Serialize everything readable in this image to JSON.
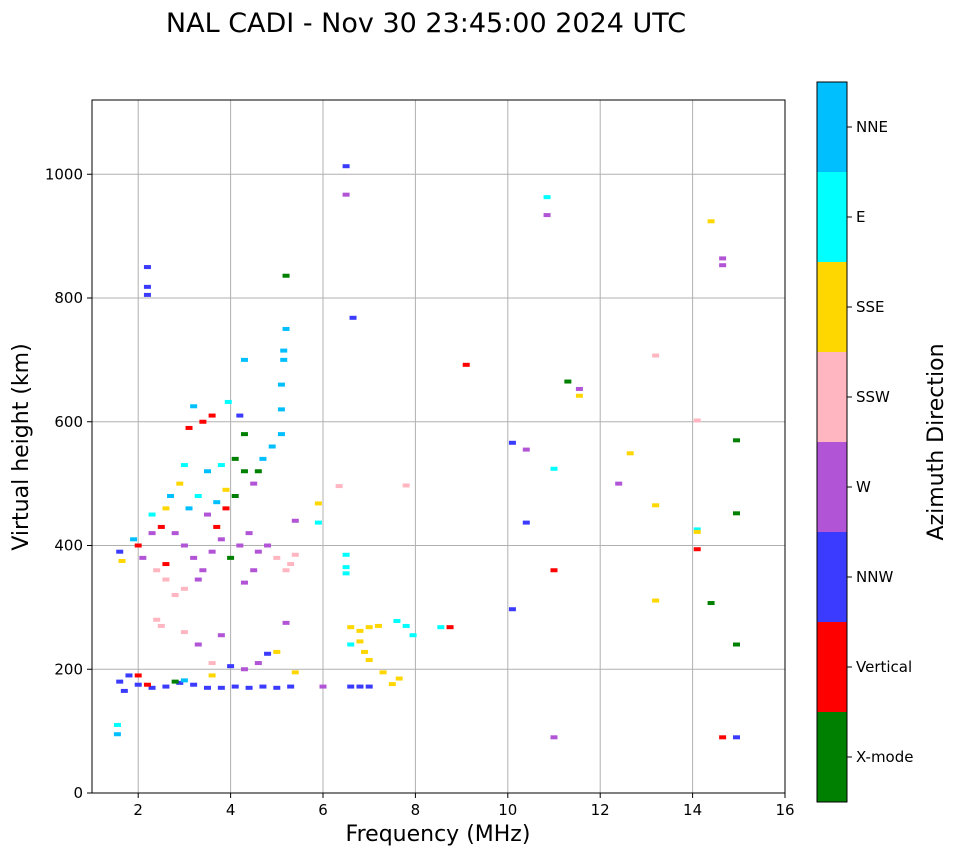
{
  "chart_data": {
    "type": "scatter",
    "title": "NAL CADI - Nov 30 23:45:00 2024 UTC",
    "xlabel": "Frequency (MHz)",
    "ylabel": "Virtual height (km)",
    "xlim": [
      1,
      16
    ],
    "ylim": [
      0,
      1120
    ],
    "xticks": [
      2,
      4,
      6,
      8,
      10,
      12,
      14,
      16
    ],
    "yticks": [
      0,
      200,
      400,
      600,
      800,
      1000
    ],
    "grid": true,
    "colorbar": {
      "label": "Azimuth Direction",
      "categories": [
        {
          "name": "X-mode",
          "color": "#008000"
        },
        {
          "name": "Vertical",
          "color": "#ff0000"
        },
        {
          "name": "NNW",
          "color": "#3b3bff"
        },
        {
          "name": "W",
          "color": "#b254d6"
        },
        {
          "name": "SSW",
          "color": "#ffb6c1"
        },
        {
          "name": "SSE",
          "color": "#ffd700"
        },
        {
          "name": "E",
          "color": "#00ffff"
        },
        {
          "name": "NNE",
          "color": "#00bfff"
        }
      ]
    },
    "points": [
      {
        "x": 6.5,
        "y": 1013,
        "d": "NNW"
      },
      {
        "x": 6.5,
        "y": 967,
        "d": "W"
      },
      {
        "x": 6.65,
        "y": 768,
        "d": "NNW"
      },
      {
        "x": 6.5,
        "y": 385,
        "d": "E"
      },
      {
        "x": 6.5,
        "y": 365,
        "d": "E"
      },
      {
        "x": 6.5,
        "y": 355,
        "d": "E"
      },
      {
        "x": 6.6,
        "y": 172,
        "d": "NNW"
      },
      {
        "x": 6.8,
        "y": 172,
        "d": "NNW"
      },
      {
        "x": 7.0,
        "y": 172,
        "d": "NNW"
      },
      {
        "x": 6.6,
        "y": 240,
        "d": "E"
      },
      {
        "x": 6.8,
        "y": 245,
        "d": "SSE"
      },
      {
        "x": 6.9,
        "y": 228,
        "d": "SSE"
      },
      {
        "x": 7.0,
        "y": 215,
        "d": "SSE"
      },
      {
        "x": 6.6,
        "y": 268,
        "d": "SSE"
      },
      {
        "x": 6.8,
        "y": 262,
        "d": "SSE"
      },
      {
        "x": 7.0,
        "y": 268,
        "d": "SSE"
      },
      {
        "x": 7.2,
        "y": 270,
        "d": "SSE"
      },
      {
        "x": 7.6,
        "y": 278,
        "d": "E"
      },
      {
        "x": 7.8,
        "y": 270,
        "d": "E"
      },
      {
        "x": 7.95,
        "y": 255,
        "d": "E"
      },
      {
        "x": 8.55,
        "y": 268,
        "d": "E"
      },
      {
        "x": 8.75,
        "y": 268,
        "d": "Vertical"
      },
      {
        "x": 7.65,
        "y": 185,
        "d": "SSE"
      },
      {
        "x": 7.5,
        "y": 176,
        "d": "SSE"
      },
      {
        "x": 7.3,
        "y": 195,
        "d": "SSE"
      },
      {
        "x": 9.1,
        "y": 692,
        "d": "Vertical"
      },
      {
        "x": 10.85,
        "y": 963,
        "d": "E"
      },
      {
        "x": 10.85,
        "y": 934,
        "d": "W"
      },
      {
        "x": 10.1,
        "y": 566,
        "d": "NNW"
      },
      {
        "x": 10.4,
        "y": 555,
        "d": "W"
      },
      {
        "x": 11.0,
        "y": 524,
        "d": "E"
      },
      {
        "x": 10.4,
        "y": 437,
        "d": "NNW"
      },
      {
        "x": 10.1,
        "y": 297,
        "d": "NNW"
      },
      {
        "x": 11.0,
        "y": 360,
        "d": "Vertical"
      },
      {
        "x": 11.0,
        "y": 90,
        "d": "W"
      },
      {
        "x": 11.3,
        "y": 665,
        "d": "X-mode"
      },
      {
        "x": 11.55,
        "y": 653,
        "d": "W"
      },
      {
        "x": 11.55,
        "y": 642,
        "d": "SSE"
      },
      {
        "x": 12.4,
        "y": 500,
        "d": "W"
      },
      {
        "x": 12.65,
        "y": 549,
        "d": "SSE"
      },
      {
        "x": 13.2,
        "y": 707,
        "d": "SSW"
      },
      {
        "x": 13.2,
        "y": 465,
        "d": "SSE"
      },
      {
        "x": 13.2,
        "y": 311,
        "d": "SSE"
      },
      {
        "x": 14.1,
        "y": 602,
        "d": "SSW"
      },
      {
        "x": 14.1,
        "y": 426,
        "d": "E"
      },
      {
        "x": 14.1,
        "y": 422,
        "d": "SSE"
      },
      {
        "x": 14.1,
        "y": 394,
        "d": "Vertical"
      },
      {
        "x": 14.4,
        "y": 924,
        "d": "SSE"
      },
      {
        "x": 14.65,
        "y": 864,
        "d": "W"
      },
      {
        "x": 14.65,
        "y": 853,
        "d": "W"
      },
      {
        "x": 14.4,
        "y": 307,
        "d": "X-mode"
      },
      {
        "x": 14.95,
        "y": 570,
        "d": "X-mode"
      },
      {
        "x": 14.95,
        "y": 452,
        "d": "X-mode"
      },
      {
        "x": 14.95,
        "y": 240,
        "d": "X-mode"
      },
      {
        "x": 14.65,
        "y": 90,
        "d": "Vertical"
      },
      {
        "x": 14.95,
        "y": 90,
        "d": "NNW"
      },
      {
        "x": 1.6,
        "y": 180,
        "d": "NNW"
      },
      {
        "x": 1.7,
        "y": 165,
        "d": "NNW"
      },
      {
        "x": 1.8,
        "y": 190,
        "d": "NNW"
      },
      {
        "x": 1.6,
        "y": 390,
        "d": "NNW"
      },
      {
        "x": 1.65,
        "y": 375,
        "d": "SSE"
      },
      {
        "x": 1.55,
        "y": 95,
        "d": "NNE"
      },
      {
        "x": 1.55,
        "y": 110,
        "d": "E"
      },
      {
        "x": 2.2,
        "y": 850,
        "d": "NNW"
      },
      {
        "x": 2.2,
        "y": 818,
        "d": "NNW"
      },
      {
        "x": 2.2,
        "y": 805,
        "d": "NNW"
      },
      {
        "x": 2.0,
        "y": 400,
        "d": "Vertical"
      },
      {
        "x": 2.1,
        "y": 380,
        "d": "W"
      },
      {
        "x": 2.3,
        "y": 420,
        "d": "W"
      },
      {
        "x": 2.5,
        "y": 430,
        "d": "Vertical"
      },
      {
        "x": 2.4,
        "y": 360,
        "d": "SSW"
      },
      {
        "x": 2.6,
        "y": 345,
        "d": "SSW"
      },
      {
        "x": 2.4,
        "y": 280,
        "d": "SSW"
      },
      {
        "x": 2.5,
        "y": 270,
        "d": "SSW"
      },
      {
        "x": 2.0,
        "y": 175,
        "d": "NNW"
      },
      {
        "x": 2.3,
        "y": 170,
        "d": "NNW"
      },
      {
        "x": 2.6,
        "y": 172,
        "d": "NNW"
      },
      {
        "x": 2.9,
        "y": 178,
        "d": "NNW"
      },
      {
        "x": 3.2,
        "y": 175,
        "d": "NNW"
      },
      {
        "x": 3.5,
        "y": 170,
        "d": "NNW"
      },
      {
        "x": 3.8,
        "y": 170,
        "d": "NNW"
      },
      {
        "x": 4.1,
        "y": 172,
        "d": "NNW"
      },
      {
        "x": 4.4,
        "y": 170,
        "d": "NNW"
      },
      {
        "x": 4.7,
        "y": 172,
        "d": "NNW"
      },
      {
        "x": 5.0,
        "y": 170,
        "d": "NNW"
      },
      {
        "x": 5.3,
        "y": 172,
        "d": "NNW"
      },
      {
        "x": 2.8,
        "y": 180,
        "d": "X-mode"
      },
      {
        "x": 3.0,
        "y": 182,
        "d": "NNE"
      },
      {
        "x": 3.6,
        "y": 190,
        "d": "SSE"
      },
      {
        "x": 4.0,
        "y": 205,
        "d": "NNW"
      },
      {
        "x": 4.3,
        "y": 200,
        "d": "W"
      },
      {
        "x": 4.6,
        "y": 210,
        "d": "W"
      },
      {
        "x": 4.8,
        "y": 225,
        "d": "NNW"
      },
      {
        "x": 5.0,
        "y": 228,
        "d": "SSE"
      },
      {
        "x": 5.4,
        "y": 195,
        "d": "SSE"
      },
      {
        "x": 3.6,
        "y": 210,
        "d": "SSW"
      },
      {
        "x": 3.0,
        "y": 260,
        "d": "SSW"
      },
      {
        "x": 3.3,
        "y": 240,
        "d": "W"
      },
      {
        "x": 3.8,
        "y": 255,
        "d": "W"
      },
      {
        "x": 5.2,
        "y": 275,
        "d": "W"
      },
      {
        "x": 2.7,
        "y": 480,
        "d": "NNE"
      },
      {
        "x": 2.9,
        "y": 500,
        "d": "SSE"
      },
      {
        "x": 3.1,
        "y": 460,
        "d": "NNE"
      },
      {
        "x": 3.3,
        "y": 480,
        "d": "E"
      },
      {
        "x": 3.5,
        "y": 450,
        "d": "W"
      },
      {
        "x": 3.7,
        "y": 470,
        "d": "NNE"
      },
      {
        "x": 3.9,
        "y": 490,
        "d": "SSE"
      },
      {
        "x": 4.1,
        "y": 480,
        "d": "X-mode"
      },
      {
        "x": 4.3,
        "y": 520,
        "d": "X-mode"
      },
      {
        "x": 4.5,
        "y": 500,
        "d": "W"
      },
      {
        "x": 4.7,
        "y": 540,
        "d": "NNE"
      },
      {
        "x": 4.9,
        "y": 560,
        "d": "NNE"
      },
      {
        "x": 3.0,
        "y": 530,
        "d": "E"
      },
      {
        "x": 3.5,
        "y": 520,
        "d": "NNE"
      },
      {
        "x": 3.8,
        "y": 530,
        "d": "E"
      },
      {
        "x": 4.1,
        "y": 540,
        "d": "X-mode"
      },
      {
        "x": 4.6,
        "y": 520,
        "d": "X-mode"
      },
      {
        "x": 5.1,
        "y": 580,
        "d": "NNE"
      },
      {
        "x": 5.1,
        "y": 620,
        "d": "NNE"
      },
      {
        "x": 5.1,
        "y": 660,
        "d": "NNE"
      },
      {
        "x": 5.15,
        "y": 700,
        "d": "NNE"
      },
      {
        "x": 5.15,
        "y": 715,
        "d": "NNE"
      },
      {
        "x": 5.2,
        "y": 750,
        "d": "NNE"
      },
      {
        "x": 5.2,
        "y": 836,
        "d": "X-mode"
      },
      {
        "x": 4.3,
        "y": 700,
        "d": "NNE"
      },
      {
        "x": 4.2,
        "y": 610,
        "d": "NNW"
      },
      {
        "x": 3.95,
        "y": 632,
        "d": "E"
      },
      {
        "x": 3.6,
        "y": 610,
        "d": "Vertical"
      },
      {
        "x": 3.4,
        "y": 600,
        "d": "Vertical"
      },
      {
        "x": 3.2,
        "y": 625,
        "d": "NNE"
      },
      {
        "x": 3.1,
        "y": 590,
        "d": "Vertical"
      },
      {
        "x": 4.3,
        "y": 580,
        "d": "X-mode"
      },
      {
        "x": 2.8,
        "y": 420,
        "d": "W"
      },
      {
        "x": 3.0,
        "y": 400,
        "d": "W"
      },
      {
        "x": 3.2,
        "y": 380,
        "d": "W"
      },
      {
        "x": 3.4,
        "y": 360,
        "d": "W"
      },
      {
        "x": 3.6,
        "y": 390,
        "d": "W"
      },
      {
        "x": 3.8,
        "y": 410,
        "d": "W"
      },
      {
        "x": 4.0,
        "y": 380,
        "d": "X-mode"
      },
      {
        "x": 4.2,
        "y": 400,
        "d": "W"
      },
      {
        "x": 4.4,
        "y": 420,
        "d": "W"
      },
      {
        "x": 4.6,
        "y": 390,
        "d": "W"
      },
      {
        "x": 4.8,
        "y": 400,
        "d": "W"
      },
      {
        "x": 5.0,
        "y": 380,
        "d": "SSW"
      },
      {
        "x": 5.2,
        "y": 360,
        "d": "SSW"
      },
      {
        "x": 5.4,
        "y": 385,
        "d": "SSW"
      },
      {
        "x": 5.3,
        "y": 370,
        "d": "SSW"
      },
      {
        "x": 4.5,
        "y": 360,
        "d": "W"
      },
      {
        "x": 4.3,
        "y": 340,
        "d": "W"
      },
      {
        "x": 2.8,
        "y": 320,
        "d": "SSW"
      },
      {
        "x": 3.0,
        "y": 330,
        "d": "SSW"
      },
      {
        "x": 3.3,
        "y": 345,
        "d": "W"
      },
      {
        "x": 2.6,
        "y": 370,
        "d": "Vertical"
      },
      {
        "x": 3.7,
        "y": 430,
        "d": "Vertical"
      },
      {
        "x": 3.9,
        "y": 460,
        "d": "Vertical"
      },
      {
        "x": 5.4,
        "y": 440,
        "d": "W"
      },
      {
        "x": 5.9,
        "y": 437,
        "d": "E"
      },
      {
        "x": 5.9,
        "y": 468,
        "d": "SSE"
      },
      {
        "x": 6.35,
        "y": 496,
        "d": "SSW"
      },
      {
        "x": 7.8,
        "y": 497,
        "d": "SSW"
      },
      {
        "x": 6.0,
        "y": 172,
        "d": "W"
      },
      {
        "x": 2.0,
        "y": 190,
        "d": "Vertical"
      },
      {
        "x": 2.2,
        "y": 175,
        "d": "Vertical"
      },
      {
        "x": 1.9,
        "y": 410,
        "d": "NNE"
      },
      {
        "x": 2.6,
        "y": 460,
        "d": "SSE"
      },
      {
        "x": 2.3,
        "y": 450,
        "d": "E"
      }
    ]
  }
}
